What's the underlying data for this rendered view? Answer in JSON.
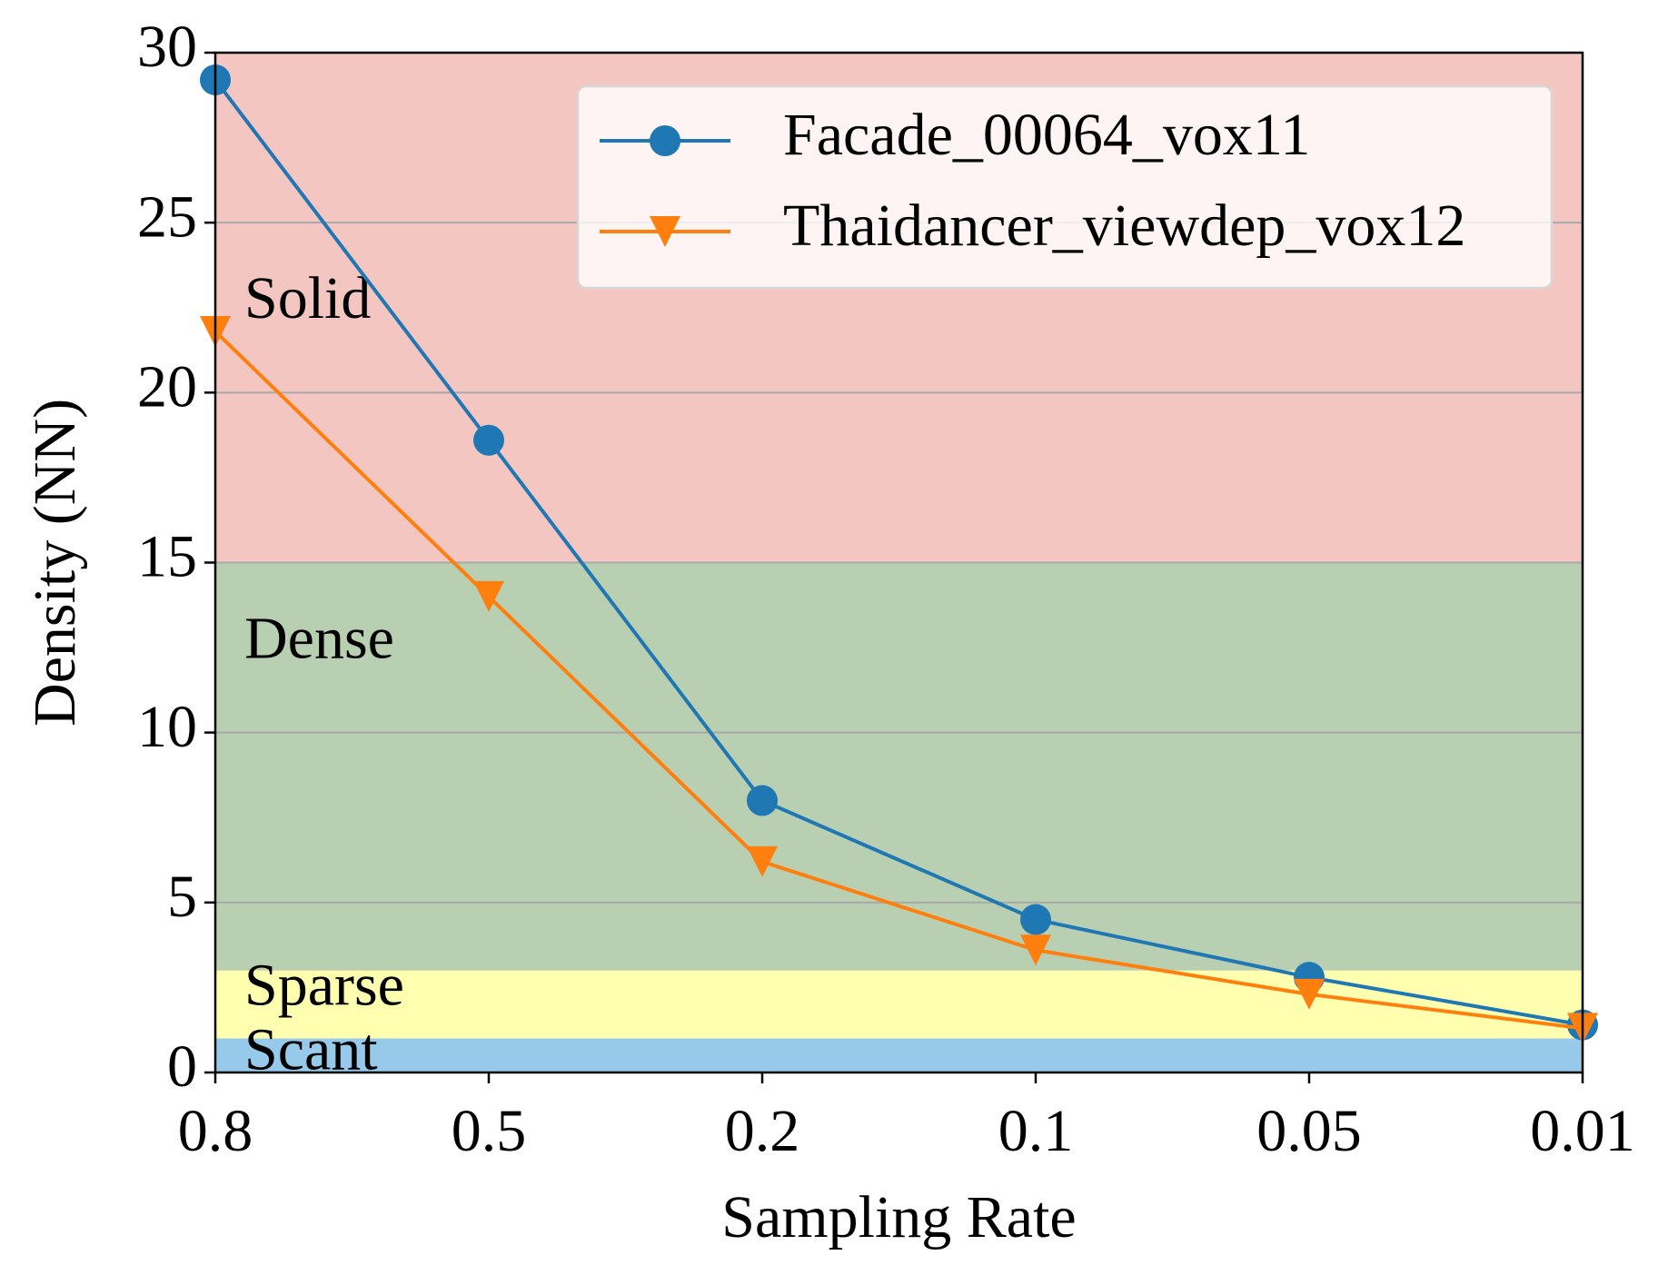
{
  "chart_data": {
    "type": "line",
    "title": "",
    "xlabel": "Sampling Rate",
    "ylabel": "Density (NN)",
    "categories": [
      "0.8",
      "0.5",
      "0.2",
      "0.1",
      "0.05",
      "0.01"
    ],
    "ylim": [
      0,
      30
    ],
    "yticks": [
      0,
      5,
      10,
      15,
      20,
      25,
      30
    ],
    "grid": "horizontal",
    "legend_position": "top-right",
    "series": [
      {
        "name": "Facade_00064_vox11",
        "marker": "circle",
        "color": "#1f77b4",
        "values": [
          29.2,
          18.6,
          8.0,
          4.5,
          2.8,
          1.4
        ]
      },
      {
        "name": "Thaidancer_viewdep_vox12",
        "marker": "triangle-down",
        "color": "#ff7f0e",
        "values": [
          21.8,
          14.0,
          6.2,
          3.6,
          2.3,
          1.3
        ]
      }
    ],
    "bands": [
      {
        "label": "Solid",
        "from": 15,
        "to": 30,
        "color": "#f4c6c1"
      },
      {
        "label": "Dense",
        "from": 3,
        "to": 15,
        "color": "#b9cfb1"
      },
      {
        "label": "Sparse",
        "from": 1,
        "to": 3,
        "color": "#ffffb0"
      },
      {
        "label": "Scant",
        "from": 0,
        "to": 1,
        "color": "#96c9ea"
      }
    ]
  }
}
